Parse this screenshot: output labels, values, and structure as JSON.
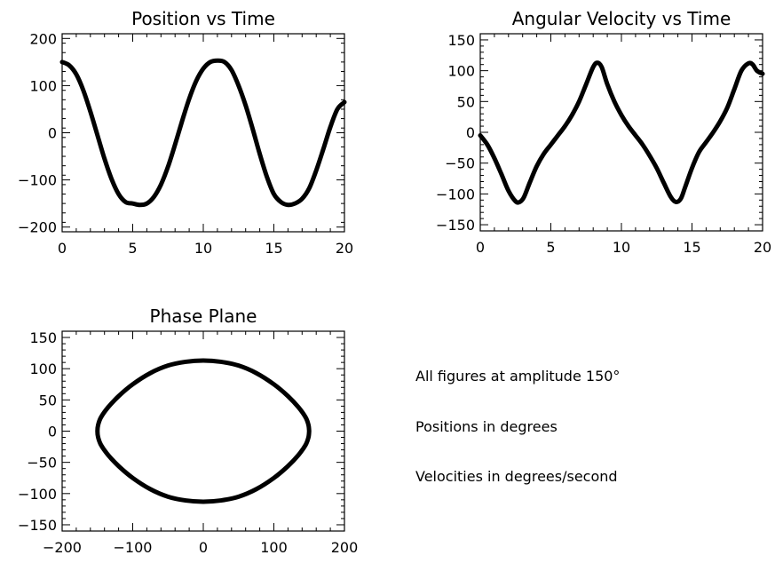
{
  "chart_data": [
    {
      "id": "position",
      "type": "line",
      "title": "Position vs Time",
      "xlabel": "",
      "ylabel": "",
      "xlim": [
        0,
        20
      ],
      "ylim": [
        -210,
        210
      ],
      "xticks": [
        0,
        5,
        10,
        15,
        20
      ],
      "yticks": [
        -200,
        -100,
        0,
        100,
        200
      ],
      "series": [
        {
          "x": [
            0,
            0.5,
            1,
            1.5,
            2,
            2.5,
            3,
            3.5,
            4,
            4.5,
            5,
            5.5,
            6,
            6.5,
            7,
            7.5,
            8,
            8.5,
            9,
            9.5,
            10,
            10.5,
            11,
            11.5,
            12,
            12.5,
            13,
            13.5,
            14,
            14.5,
            15,
            15.5,
            16,
            16.5,
            17,
            17.5,
            18,
            18.5,
            19,
            19.5,
            20
          ],
          "y": [
            150,
            143,
            124,
            90,
            45,
            -5,
            -55,
            -98,
            -130,
            -147,
            -150,
            -153,
            -150,
            -136,
            -110,
            -72,
            -25,
            25,
            72,
            110,
            136,
            150,
            153,
            150,
            133,
            100,
            58,
            8,
            -45,
            -93,
            -130,
            -147,
            -153,
            -150,
            -140,
            -118,
            -80,
            -35,
            12,
            50,
            65
          ]
        }
      ]
    },
    {
      "id": "velocity",
      "type": "line",
      "title": "Angular Velocity vs Time",
      "xlabel": "",
      "ylabel": "",
      "xlim": [
        0,
        20
      ],
      "ylim": [
        -160,
        160
      ],
      "xticks": [
        0,
        5,
        10,
        15,
        20
      ],
      "yticks": [
        -150,
        -100,
        -50,
        0,
        50,
        100,
        150
      ],
      "series": [
        {
          "x": [
            0,
            0.5,
            1,
            1.5,
            2,
            2.5,
            2.8,
            3.1,
            3.5,
            4,
            4.5,
            5,
            5.5,
            6,
            6.5,
            7,
            7.5,
            8,
            8.3,
            8.6,
            9,
            9.5,
            10,
            10.5,
            11,
            11.5,
            12,
            12.5,
            13,
            13.5,
            13.85,
            14.2,
            14.5,
            15,
            15.5,
            16,
            16.5,
            17,
            17.5,
            18,
            18.5,
            19,
            19.3,
            19.6,
            20
          ],
          "y": [
            -5,
            -20,
            -42,
            -68,
            -95,
            -112,
            -113,
            -105,
            -82,
            -55,
            -35,
            -20,
            -5,
            10,
            28,
            50,
            78,
            106,
            113,
            106,
            78,
            50,
            28,
            10,
            -5,
            -20,
            -38,
            -58,
            -82,
            -105,
            -113,
            -108,
            -90,
            -58,
            -32,
            -16,
            0,
            18,
            40,
            70,
            100,
            112,
            110,
            100,
            95
          ]
        }
      ]
    },
    {
      "id": "phase",
      "type": "line",
      "title": "Phase Plane",
      "xlabel": "",
      "ylabel": "",
      "xlim": [
        -200,
        200
      ],
      "ylim": [
        -160,
        160
      ],
      "xticks": [
        -200,
        -100,
        0,
        100,
        200
      ],
      "yticks": [
        -150,
        -100,
        -50,
        0,
        50,
        100,
        150
      ],
      "series": [
        {
          "x": [
            150,
            149,
            145,
            135,
            120,
            100,
            75,
            50,
            25,
            0,
            -25,
            -50,
            -75,
            -100,
            -120,
            -135,
            -145,
            -149,
            -150,
            -149,
            -145,
            -135,
            -120,
            -100,
            -75,
            -50,
            -25,
            0,
            25,
            50,
            75,
            100,
            120,
            135,
            145,
            149,
            150
          ],
          "y": [
            0,
            10,
            22,
            38,
            56,
            75,
            93,
            105,
            111,
            113,
            111,
            105,
            93,
            75,
            56,
            38,
            22,
            10,
            0,
            -10,
            -22,
            -38,
            -56,
            -75,
            -93,
            -105,
            -111,
            -113,
            -111,
            -105,
            -93,
            -75,
            -56,
            -38,
            -22,
            -10,
            0
          ]
        }
      ]
    }
  ],
  "annotations": {
    "amplitude": "All figures at amplitude 150°",
    "positions": "Positions in degrees",
    "velocities": "Velocities in degrees/second"
  }
}
